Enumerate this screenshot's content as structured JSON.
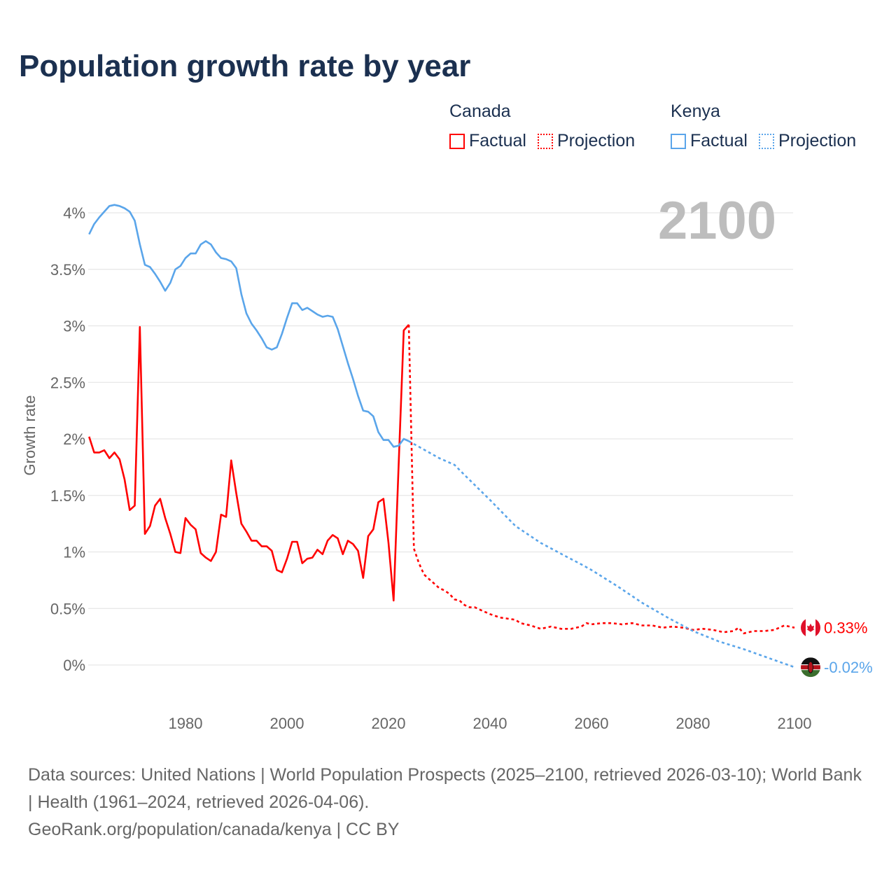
{
  "title": "Population growth rate by year",
  "current_year": "2100",
  "legend": [
    {
      "group": "Canada",
      "color": "#ff0000",
      "factual_label": "Factual",
      "projection_label": "Projection"
    },
    {
      "group": "Kenya",
      "color": "#5aa5ea",
      "factual_label": "Factual",
      "projection_label": "Projection"
    }
  ],
  "footer": {
    "sources": "Data sources: United Nations | World Population Prospects (2025–2100, retrieved 2026-03-10); World Bank | Health (1961–2024, retrieved 2026-04-06).",
    "credit": "GeoRank.org/population/canada/kenya | CC BY"
  },
  "chart_data": {
    "type": "line",
    "title": "Population growth rate by year",
    "ylabel": "Growth rate",
    "xlabel": "",
    "xlim": [
      1961,
      2100
    ],
    "ylim": [
      -0.2,
      4.2
    ],
    "grid": true,
    "x_ticks": [
      1980,
      2000,
      2020,
      2040,
      2060,
      2080,
      2100
    ],
    "y_ticks": [
      0,
      0.5,
      1,
      1.5,
      2,
      2.5,
      3,
      3.5,
      4
    ],
    "y_tick_labels": [
      "0%",
      "0.5%",
      "1%",
      "1.5%",
      "2%",
      "2.5%",
      "3%",
      "3.5%",
      "4%"
    ],
    "end_labels": {
      "canada": "0.33%",
      "kenya": "-0.02%"
    },
    "series": [
      {
        "name": "Canada Factual",
        "color": "#ff0000",
        "dashed": false,
        "x": [
          1961,
          1962,
          1963,
          1964,
          1965,
          1966,
          1967,
          1968,
          1969,
          1970,
          1971,
          1972,
          1973,
          1974,
          1975,
          1976,
          1977,
          1978,
          1979,
          1980,
          1981,
          1982,
          1983,
          1984,
          1985,
          1986,
          1987,
          1988,
          1989,
          1990,
          1991,
          1992,
          1993,
          1994,
          1995,
          1996,
          1997,
          1998,
          1999,
          2000,
          2001,
          2002,
          2003,
          2004,
          2005,
          2006,
          2007,
          2008,
          2009,
          2010,
          2011,
          2012,
          2013,
          2014,
          2015,
          2016,
          2017,
          2018,
          2019,
          2020,
          2021,
          2022,
          2023,
          2024
        ],
        "y": [
          2.02,
          1.88,
          1.88,
          1.9,
          1.83,
          1.88,
          1.82,
          1.64,
          1.37,
          1.41,
          2.99,
          1.16,
          1.23,
          1.41,
          1.47,
          1.3,
          1.16,
          1.0,
          0.99,
          1.3,
          1.24,
          1.2,
          0.99,
          0.95,
          0.92,
          1.0,
          1.33,
          1.31,
          1.81,
          1.52,
          1.25,
          1.18,
          1.1,
          1.1,
          1.05,
          1.05,
          1.01,
          0.84,
          0.82,
          0.94,
          1.09,
          1.09,
          0.9,
          0.94,
          0.95,
          1.02,
          0.98,
          1.1,
          1.15,
          1.12,
          0.98,
          1.1,
          1.07,
          1.01,
          0.77,
          1.14,
          1.2,
          1.44,
          1.47,
          1.08,
          0.57,
          1.77,
          2.96,
          3.01
        ]
      },
      {
        "name": "Canada Projection",
        "color": "#ff0000",
        "dashed": true,
        "x": [
          2024,
          2025,
          2026,
          2027,
          2028,
          2029,
          2030,
          2031,
          2032,
          2033,
          2034,
          2035,
          2036,
          2037,
          2038,
          2040,
          2042,
          2045,
          2046,
          2048,
          2050,
          2052,
          2054,
          2056,
          2058,
          2059,
          2060,
          2062,
          2064,
          2066,
          2068,
          2070,
          2072,
          2074,
          2076,
          2078,
          2080,
          2082,
          2084,
          2086,
          2088,
          2089,
          2090,
          2092,
          2094,
          2096,
          2098,
          2100
        ],
        "y": [
          3.01,
          1.03,
          0.9,
          0.8,
          0.76,
          0.72,
          0.68,
          0.66,
          0.63,
          0.58,
          0.57,
          0.53,
          0.51,
          0.51,
          0.49,
          0.45,
          0.42,
          0.4,
          0.37,
          0.35,
          0.32,
          0.34,
          0.32,
          0.32,
          0.34,
          0.37,
          0.36,
          0.37,
          0.37,
          0.36,
          0.37,
          0.35,
          0.35,
          0.33,
          0.34,
          0.33,
          0.31,
          0.32,
          0.31,
          0.29,
          0.3,
          0.33,
          0.28,
          0.3,
          0.3,
          0.31,
          0.35,
          0.33
        ]
      },
      {
        "name": "Kenya Factual",
        "color": "#5aa5ea",
        "dashed": false,
        "x": [
          1961,
          1962,
          1963,
          1964,
          1965,
          1966,
          1967,
          1968,
          1969,
          1970,
          1971,
          1972,
          1973,
          1974,
          1975,
          1976,
          1977,
          1978,
          1979,
          1980,
          1981,
          1982,
          1983,
          1984,
          1985,
          1986,
          1987,
          1988,
          1989,
          1990,
          1991,
          1992,
          1993,
          1994,
          1995,
          1996,
          1997,
          1998,
          1999,
          2000,
          2001,
          2002,
          2003,
          2004,
          2005,
          2006,
          2007,
          2008,
          2009,
          2010,
          2011,
          2012,
          2013,
          2014,
          2015,
          2016,
          2017,
          2018,
          2019,
          2020,
          2021,
          2022,
          2023,
          2024
        ],
        "y": [
          3.81,
          3.9,
          3.96,
          4.01,
          4.06,
          4.07,
          4.06,
          4.04,
          4.01,
          3.93,
          3.72,
          3.54,
          3.52,
          3.46,
          3.39,
          3.31,
          3.38,
          3.5,
          3.53,
          3.6,
          3.64,
          3.64,
          3.72,
          3.75,
          3.72,
          3.65,
          3.6,
          3.59,
          3.57,
          3.51,
          3.28,
          3.11,
          3.02,
          2.96,
          2.89,
          2.81,
          2.79,
          2.81,
          2.93,
          3.07,
          3.2,
          3.2,
          3.14,
          3.16,
          3.13,
          3.1,
          3.08,
          3.09,
          3.08,
          2.97,
          2.82,
          2.67,
          2.53,
          2.38,
          2.25,
          2.24,
          2.2,
          2.06,
          1.99,
          1.99,
          1.93,
          1.94,
          2.0,
          1.98
        ]
      },
      {
        "name": "Kenya Projection",
        "color": "#5aa5ea",
        "dashed": true,
        "x": [
          2024,
          2026,
          2030,
          2033,
          2035,
          2040,
          2045,
          2050,
          2055,
          2058,
          2060,
          2065,
          2070,
          2075,
          2080,
          2085,
          2090,
          2095,
          2100
        ],
        "y": [
          1.98,
          1.93,
          1.83,
          1.77,
          1.68,
          1.46,
          1.23,
          1.08,
          0.96,
          0.89,
          0.84,
          0.7,
          0.55,
          0.42,
          0.3,
          0.21,
          0.14,
          0.06,
          -0.02
        ]
      }
    ]
  }
}
